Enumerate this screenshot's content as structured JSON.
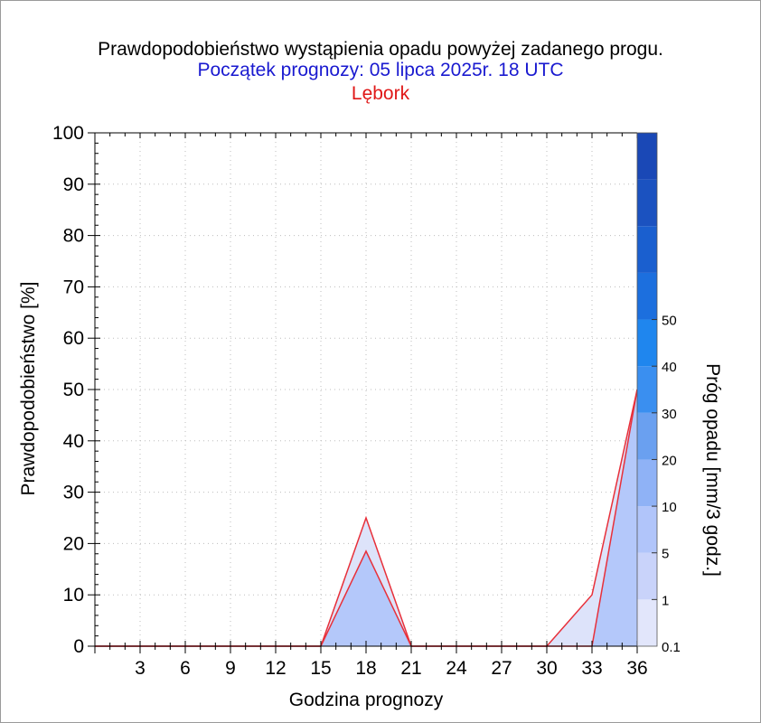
{
  "chart_data": {
    "type": "area",
    "title": "Prawdopodobieństwo wystąpienia opadu powyżej zadanego progu.",
    "subtitle": "Początek prognozy: 05 lipca 2025r. 18 UTC",
    "location": "Lębork",
    "xlabel": "Godzina prognozy",
    "ylabel": "Prawdopodobieństwo [%]",
    "xlim": [
      0,
      36
    ],
    "ylim": [
      0,
      100
    ],
    "xticks": [
      3,
      6,
      9,
      12,
      15,
      18,
      21,
      24,
      27,
      30,
      33,
      36
    ],
    "yticks": [
      0,
      10,
      20,
      30,
      40,
      50,
      60,
      70,
      80,
      90,
      100
    ],
    "grid": true,
    "x": [
      0,
      3,
      6,
      9,
      12,
      15,
      18,
      21,
      24,
      27,
      30,
      33,
      36
    ],
    "series": [
      {
        "name": "0.1",
        "color": "#dde3fa",
        "values": [
          0,
          0,
          0,
          0,
          0,
          0,
          25,
          0,
          0,
          0,
          0,
          10,
          50
        ]
      },
      {
        "name": "1",
        "color": "#b4c8fa",
        "values": [
          0,
          0,
          0,
          0,
          0,
          0,
          18.5,
          0,
          0,
          0,
          0,
          0,
          50
        ]
      }
    ],
    "line_color": "#e8303a",
    "colorbar": {
      "label": "Próg opadu [mm/3 godz.]",
      "labels": [
        "0.1",
        "1",
        "5",
        "10",
        "20",
        "30",
        "40",
        "50"
      ],
      "colors": [
        "#e2e6fb",
        "#c9d3fa",
        "#b1c5fa",
        "#8fb2f6",
        "#6aa0f0",
        "#3a8ff0",
        "#1f86ee",
        "#1c6fde",
        "#1a5fcf",
        "#1b52c0",
        "#1a48b6"
      ]
    }
  }
}
